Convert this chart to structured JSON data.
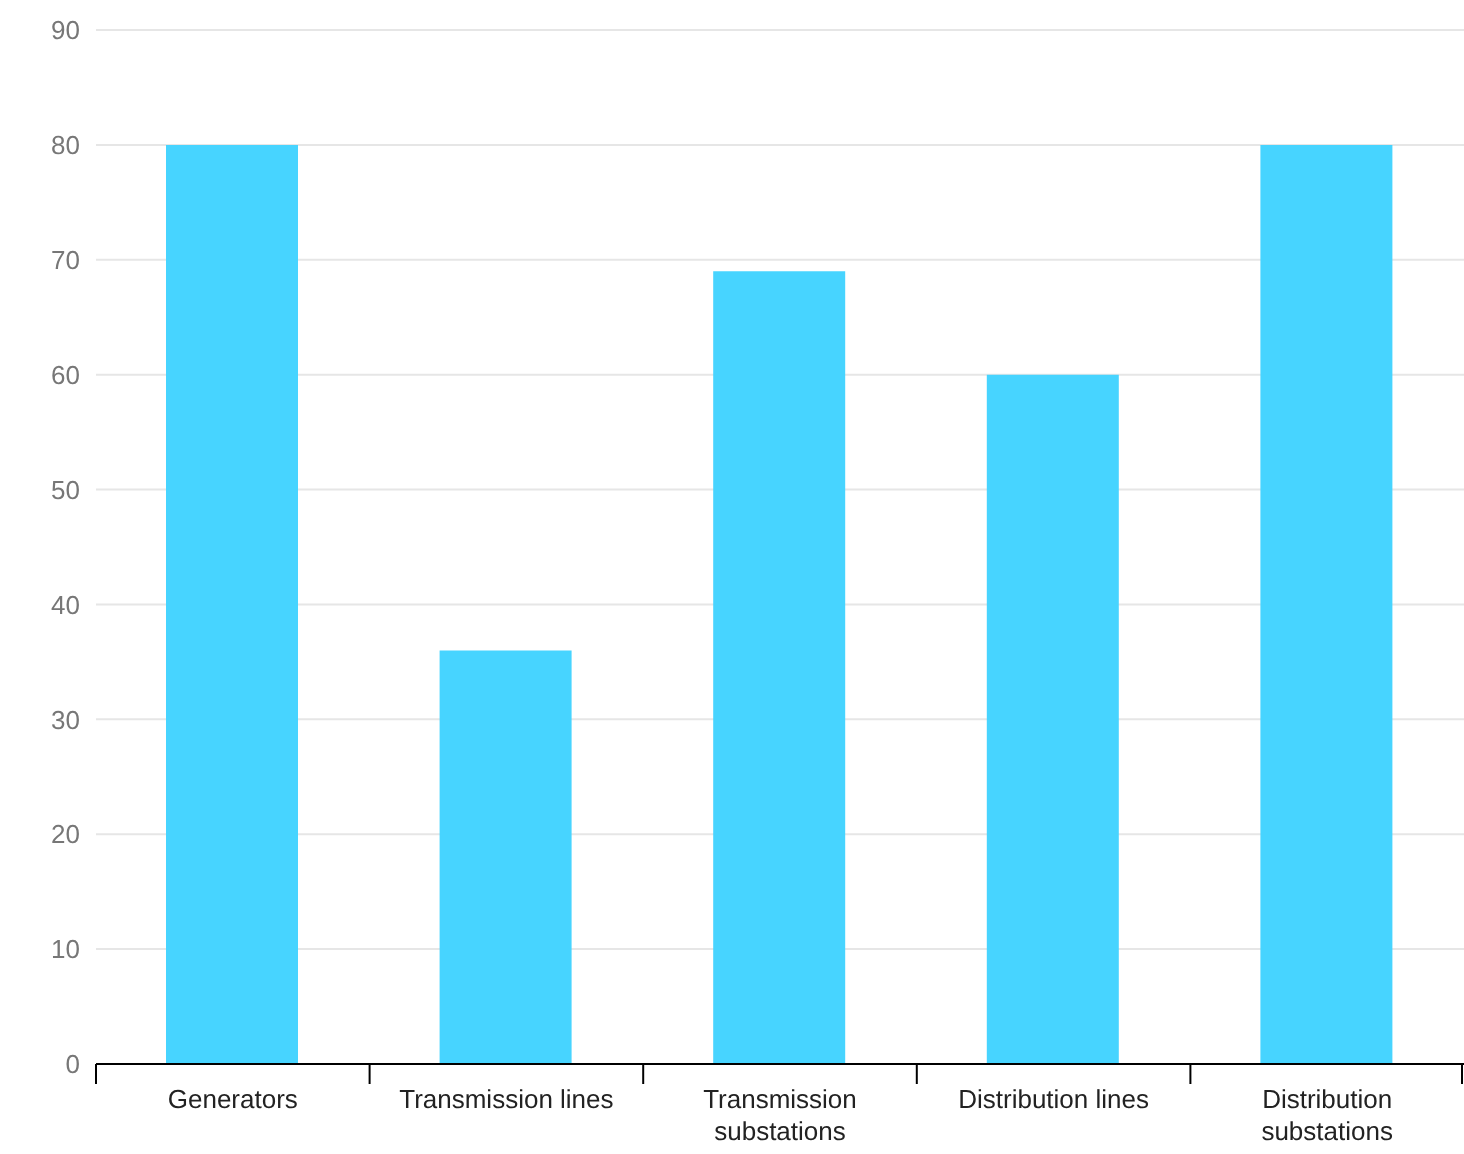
{
  "chart_data": {
    "type": "bar",
    "categories": [
      "Generators",
      "Transmission lines",
      "Transmission substations",
      "Distribution lines",
      "Distribution substations"
    ],
    "values": [
      80,
      36,
      69,
      60,
      80
    ],
    "color": "#47d4ff",
    "ylim": [
      0,
      90
    ],
    "yticks": [
      0,
      10,
      20,
      30,
      40,
      50,
      60,
      70,
      80,
      90
    ],
    "grid": "y"
  }
}
